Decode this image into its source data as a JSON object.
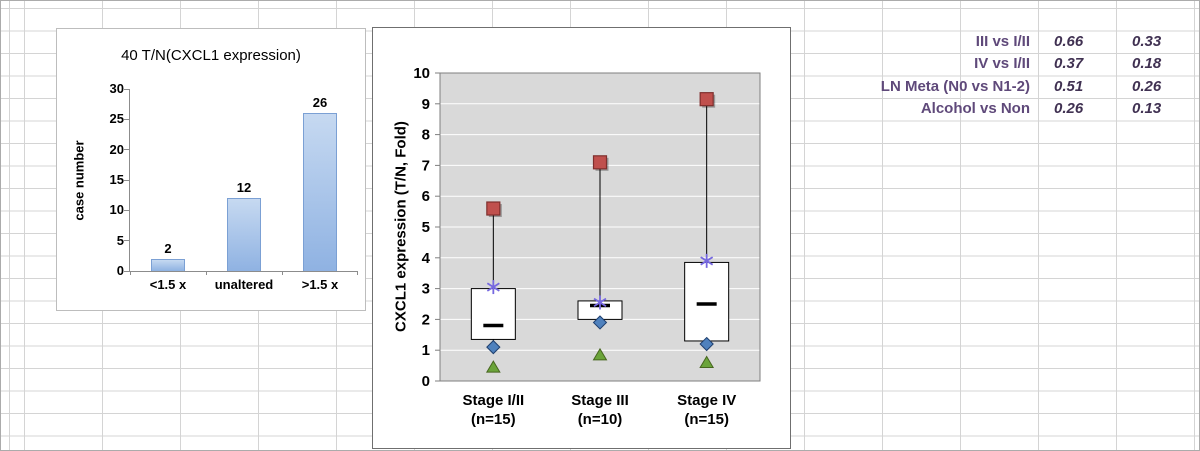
{
  "colors": {
    "bar_fill": "#8fb2e2",
    "bar_fill_light": "#c6d9f1",
    "bar_border": "#7ba0d4",
    "plot_bg": "#d9d9d9",
    "box_red": "#c0504d",
    "box_red_dark": "#7f2f2d",
    "star_purple": "#7668e0",
    "diamond_blue": "#4f81bd",
    "diamond_blue_dark": "#1f3f6e",
    "tri_green": "#6ba43a",
    "tri_green_dark": "#47661f",
    "table_label": "#5f497a",
    "table_value": "#403152"
  },
  "chart_data": [
    {
      "type": "bar",
      "title": "40 T/N(CXCL1 expression)",
      "ylabel": "case number",
      "xlabel": "",
      "categories": [
        "<1.5 x",
        "unaltered",
        ">1.5 x"
      ],
      "values": [
        2,
        12,
        26
      ],
      "yticks": [
        0,
        5,
        10,
        15,
        20,
        25,
        30
      ],
      "ylim": [
        0,
        30
      ],
      "grid": false,
      "legend": false
    },
    {
      "type": "box",
      "title": "",
      "ylabel": "CXCL1 expression (T/N, Fold)",
      "ylim": [
        0,
        10
      ],
      "yticks": [
        0,
        1,
        2,
        3,
        4,
        5,
        6,
        7,
        8,
        9,
        10
      ],
      "grid": true,
      "plot_background": "gray",
      "categories": [
        {
          "label": "Stage I/II",
          "n": "(n=15)"
        },
        {
          "label": "Stage III",
          "n": "(n=10)"
        },
        {
          "label": "Stage IV",
          "n": "(n=15)"
        }
      ],
      "series": [
        {
          "category": "Stage I/II",
          "max": 5.6,
          "q3": 3.0,
          "median": 1.8,
          "q1": 1.35,
          "whisker_low": 1.1,
          "min": 0.45,
          "star": 3.05
        },
        {
          "category": "Stage III",
          "max": 7.1,
          "q3": 2.6,
          "median": 2.45,
          "q1": 2.0,
          "whisker_low": 1.9,
          "min": 0.85,
          "star": 2.55
        },
        {
          "category": "Stage IV",
          "max": 9.15,
          "q3": 3.85,
          "median": 2.5,
          "q1": 1.3,
          "whisker_low": 1.2,
          "min": 0.6,
          "star": 3.9
        }
      ],
      "marker_legend": {
        "red_square": "maximum",
        "purple_asterisk": "upper value",
        "blue_diamond": "lower whisker",
        "green_triangle": "minimum"
      }
    }
  ],
  "stats_table": {
    "rows": [
      {
        "label": "III vs I/II",
        "values": [
          "0.66",
          "0.33"
        ]
      },
      {
        "label": "IV vs I/II",
        "values": [
          "0.37",
          "0.18"
        ]
      },
      {
        "label": "LN Meta (N0 vs N1-2)",
        "values": [
          "0.51",
          "0.26"
        ]
      },
      {
        "label": "Alcohol vs Non",
        "values": [
          "0.26",
          "0.13"
        ]
      }
    ]
  }
}
